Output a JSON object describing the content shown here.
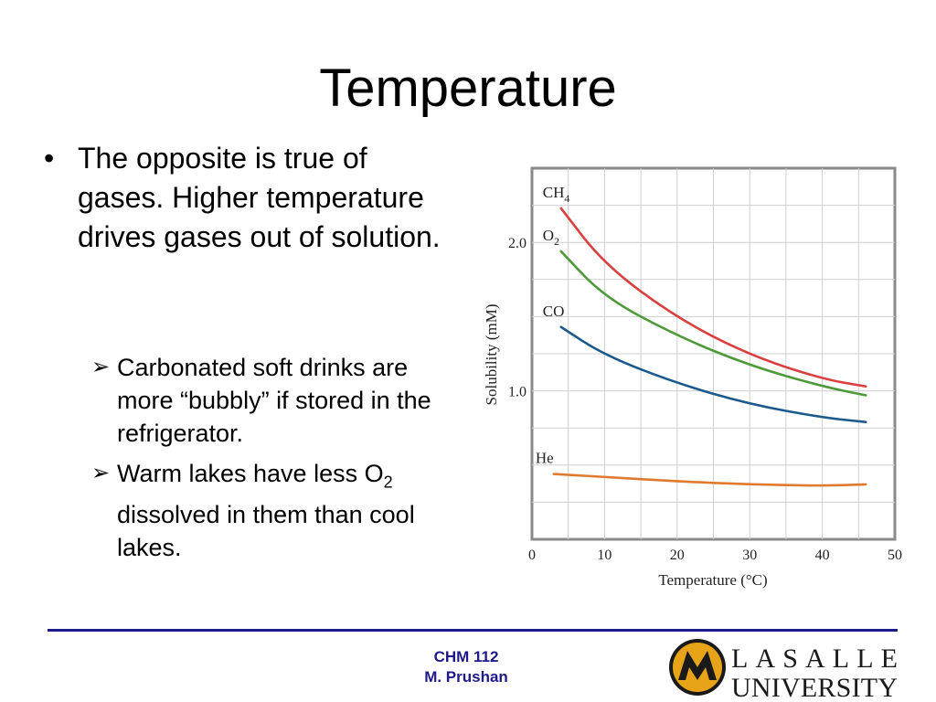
{
  "slide": {
    "title": "Temperature",
    "bullet_main": "The opposite is true of gases. Higher temperature drives gases out of solution.",
    "sub1": "Carbonated soft drinks are more “bubbly” if stored in the refrigerator.",
    "sub2_before": "Warm lakes have less O",
    "sub2_sub": "2",
    "sub2_after": " dissolved in them than cool lakes."
  },
  "footer": {
    "course": "CHM 112",
    "author": "M. Prushan"
  },
  "logo": {
    "line1": "LASALLE",
    "line2": "UNIVERSITY"
  },
  "colors": {
    "CH4": "#d94040",
    "O2": "#4e9a3a",
    "CO": "#1d5a8c",
    "He": "#e07a2e",
    "footer": "#1f1a8a",
    "logo_gold": "#e8a418"
  },
  "chart_data": {
    "type": "line",
    "title": "",
    "xlabel": "Temperature (°C)",
    "ylabel": "Solubility (mM)",
    "xlim": [
      0,
      50
    ],
    "ylim": [
      0,
      2.5
    ],
    "xticks": [
      0,
      10,
      20,
      30,
      40,
      50
    ],
    "yticks": [
      1.0,
      2.0
    ],
    "grid": true,
    "series": [
      {
        "name": "CH",
        "sub": "4",
        "x": [
          4,
          10,
          20,
          30,
          40,
          46
        ],
        "values": [
          2.23,
          1.85,
          1.49,
          1.24,
          1.08,
          1.03
        ]
      },
      {
        "name": "O",
        "sub": "2",
        "x": [
          4,
          10,
          20,
          30,
          40,
          46
        ],
        "values": [
          1.94,
          1.63,
          1.37,
          1.17,
          1.03,
          0.97
        ]
      },
      {
        "name": "CO",
        "sub": "",
        "x": [
          4,
          10,
          20,
          30,
          40,
          46
        ],
        "values": [
          1.43,
          1.24,
          1.05,
          0.91,
          0.82,
          0.79
        ]
      },
      {
        "name": "He",
        "sub": "",
        "x": [
          3,
          10,
          20,
          30,
          40,
          46
        ],
        "values": [
          0.44,
          0.42,
          0.39,
          0.37,
          0.36,
          0.37
        ]
      }
    ]
  }
}
